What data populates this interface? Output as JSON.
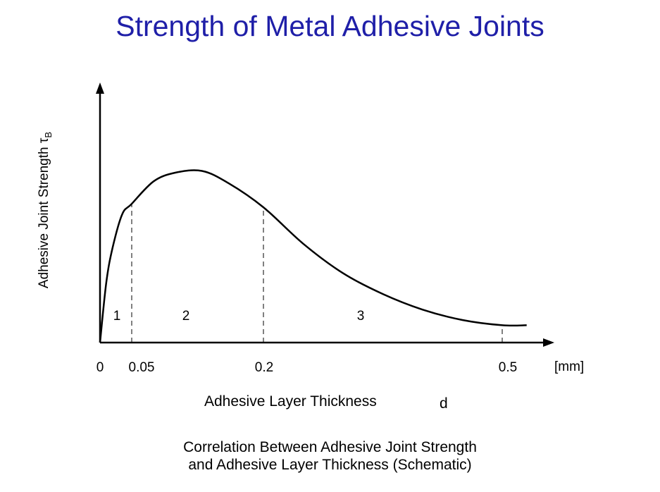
{
  "title": "Strength of Metal Adhesive Joints",
  "chart_data": {
    "type": "line",
    "title": "Strength of Metal Adhesive Joints",
    "ylabel_text": "Adhesive Joint Strength",
    "ylabel_symbol": "τ",
    "ylabel_subscript": "B",
    "xlabel": "Adhesive Layer Thickness",
    "xvar": "d",
    "x_unit": "[mm]",
    "x_ticks": [
      {
        "value": 0,
        "label": "0"
      },
      {
        "value": 0.05,
        "label": "0.05"
      },
      {
        "value": 0.2,
        "label": "0.2"
      },
      {
        "value": 0.5,
        "label": "0.5"
      }
    ],
    "regions": [
      {
        "label": "1",
        "from": 0,
        "to": 0.05
      },
      {
        "label": "2",
        "from": 0.05,
        "to": 0.2
      },
      {
        "label": "3",
        "from": 0.2,
        "to": 0.5
      }
    ],
    "boundaries": [
      0.05,
      0.2,
      0.5
    ],
    "series": [
      {
        "x": [
          0,
          0.01,
          0.02,
          0.035,
          0.05,
          0.075,
          0.1,
          0.13,
          0.16,
          0.2,
          0.25,
          0.3,
          0.35,
          0.4,
          0.45,
          0.5,
          0.54
        ],
        "y": [
          0,
          0.35,
          0.55,
          0.74,
          0.8,
          0.93,
          0.98,
          0.99,
          0.92,
          0.78,
          0.57,
          0.4,
          0.28,
          0.19,
          0.13,
          0.1,
          0.1
        ]
      }
    ],
    "xlim": [
      0,
      0.56
    ],
    "ylim": [
      0,
      1.02
    ]
  },
  "caption": [
    "Correlation Between Adhesive Joint Strength",
    "and Adhesive Layer Thickness (Schematic)"
  ]
}
